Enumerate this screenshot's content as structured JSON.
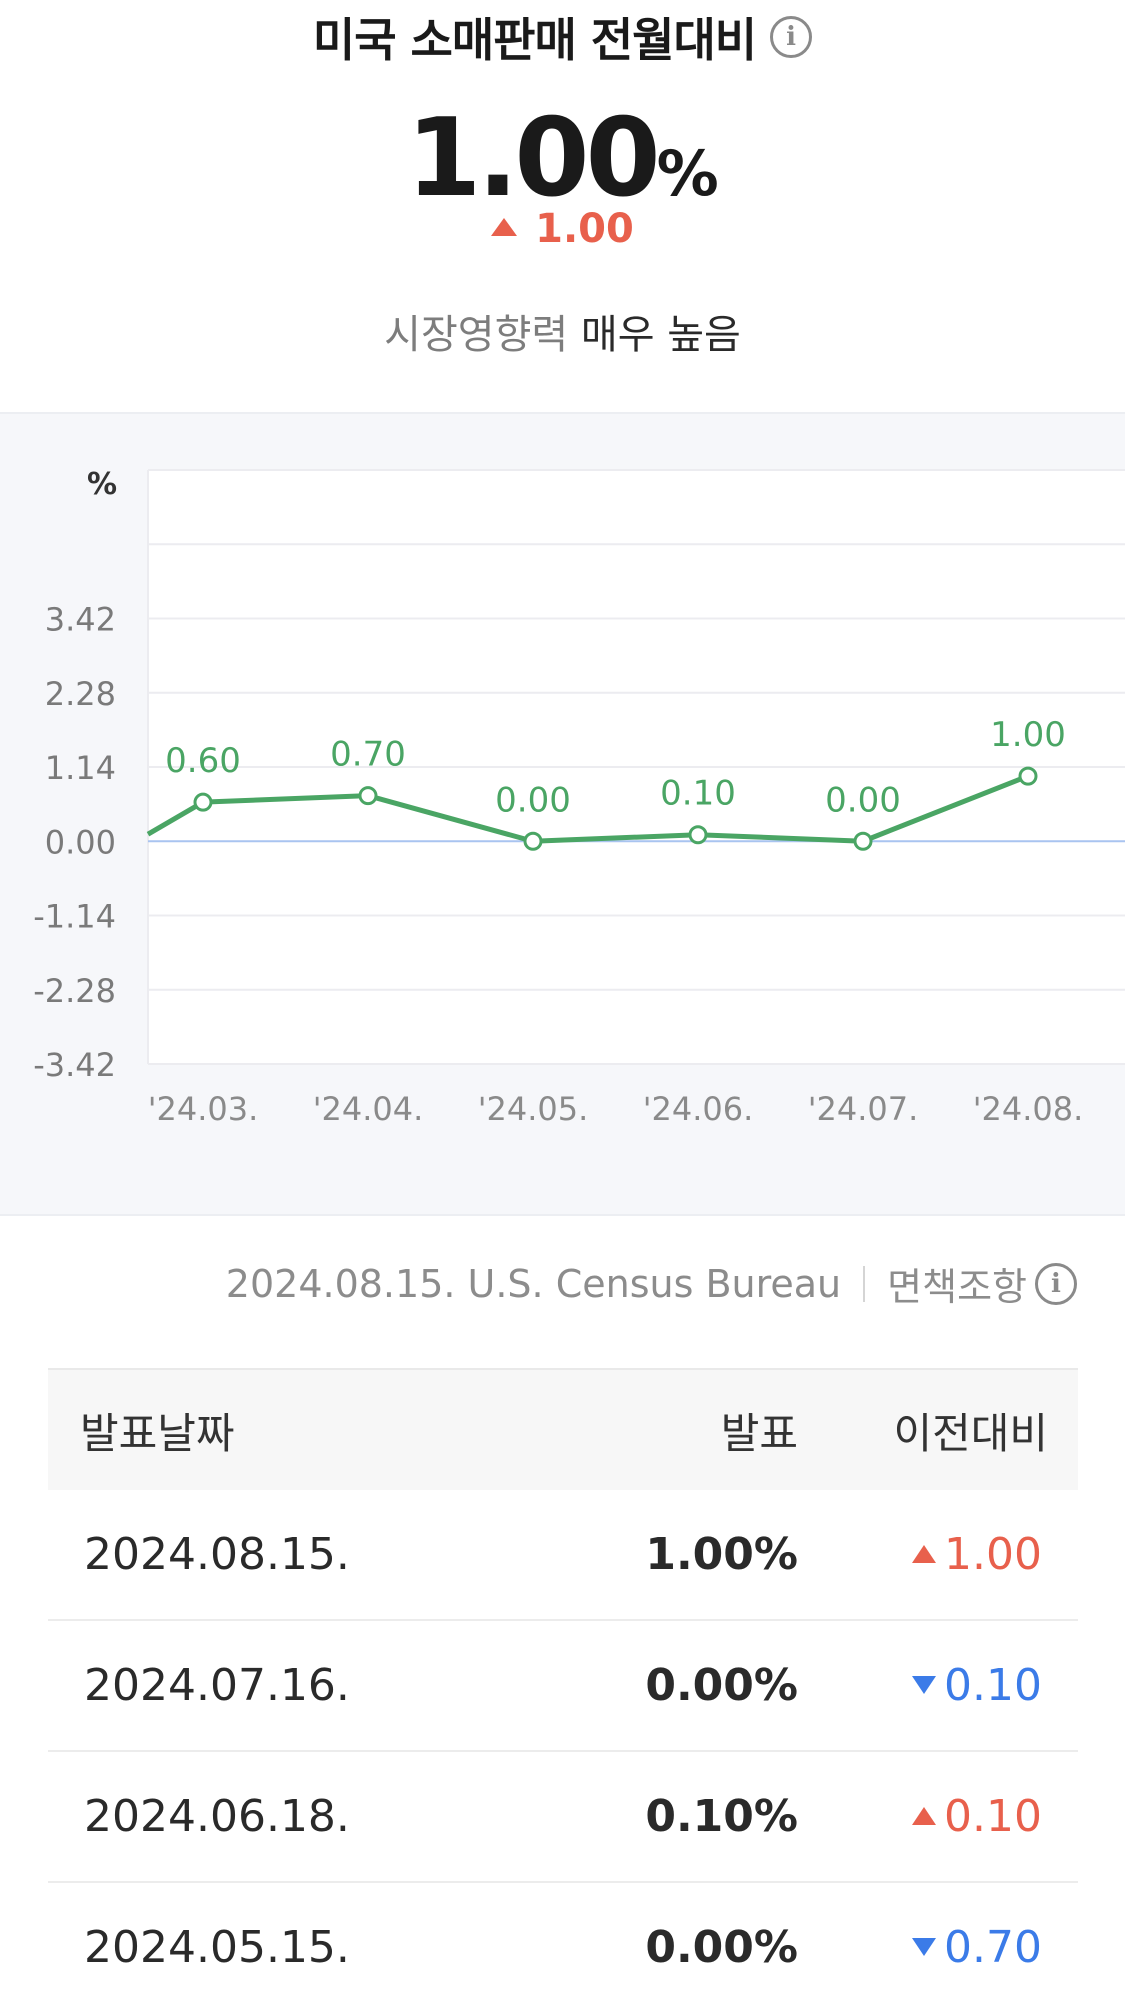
{
  "header": {
    "title": "미국 소매판매 전월대비",
    "info_icon": "info-icon",
    "value": "1.00",
    "unit": "%",
    "change": "1.00",
    "change_direction": "up",
    "impact_label": "시장영향력",
    "impact_value": "매우 높음"
  },
  "colors": {
    "up": "#e8604c",
    "down": "#3b7be8",
    "line": "#4aa564",
    "zero_line": "#a9c4f0"
  },
  "chart_data": {
    "type": "line",
    "ylabel": "%",
    "y_ticks": [
      "3.42",
      "2.28",
      "1.14",
      "0.00",
      "-1.14",
      "-2.28",
      "-3.42"
    ],
    "ylim": [
      -3.42,
      5.7
    ],
    "categories": [
      "'24.03.",
      "'24.04.",
      "'24.05.",
      "'24.06.",
      "'24.07.",
      "'24.08."
    ],
    "series": [
      {
        "values": [
          0.6,
          0.7,
          0.0,
          0.1,
          0.0,
          1.0
        ],
        "labels": [
          "0.60",
          "0.70",
          "0.00",
          "0.10",
          "0.00",
          "1.00"
        ]
      }
    ],
    "grid": true,
    "legend": "none"
  },
  "source": {
    "text": "2024.08.15. U.S. Census Bureau",
    "disclaimer": "면책조항"
  },
  "table": {
    "headers": {
      "date": "발표날짜",
      "value": "발표",
      "change": "이전대비"
    },
    "rows": [
      {
        "date": "2024.08.15.",
        "value": "1.00%",
        "change": "1.00",
        "direction": "up"
      },
      {
        "date": "2024.07.16.",
        "value": "0.00%",
        "change": "0.10",
        "direction": "down"
      },
      {
        "date": "2024.06.18.",
        "value": "0.10%",
        "change": "0.10",
        "direction": "up"
      },
      {
        "date": "2024.05.15.",
        "value": "0.00%",
        "change": "0.70",
        "direction": "down"
      }
    ]
  }
}
